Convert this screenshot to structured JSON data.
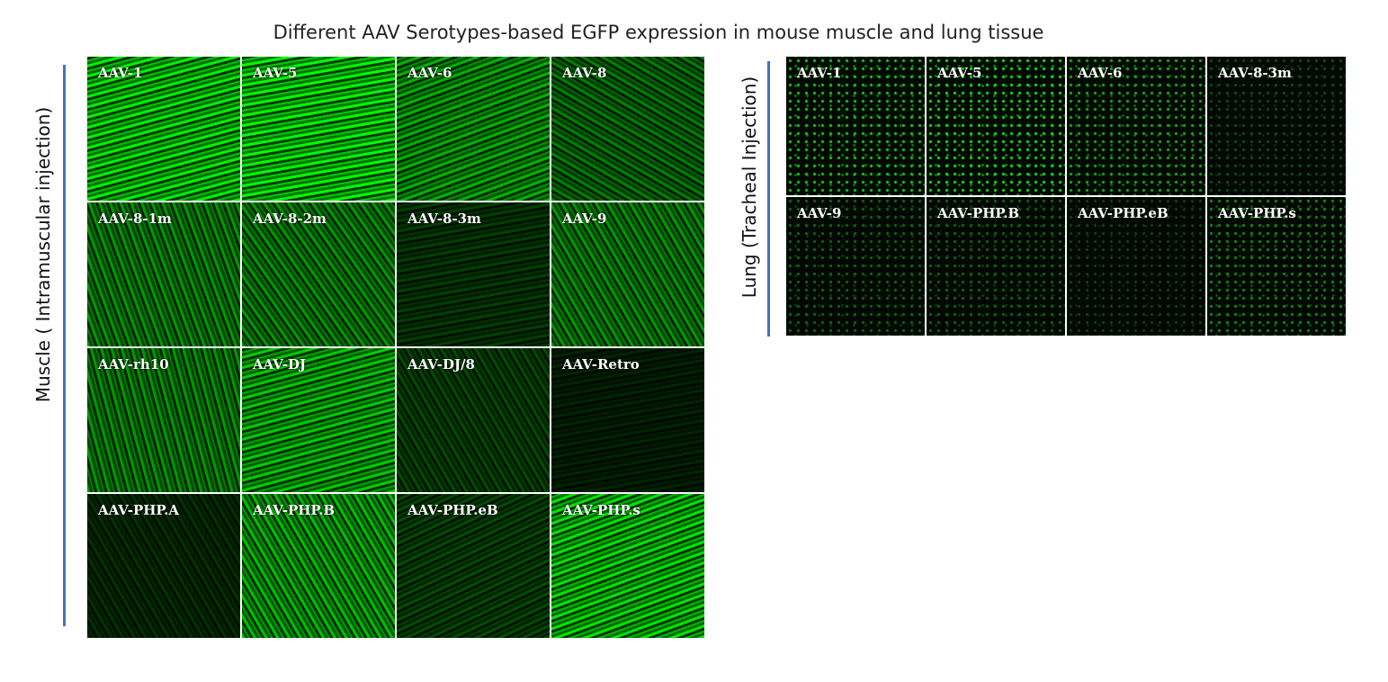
{
  "title": "Different AAV Serotypes-based EGFP expression in mouse muscle and lung tissue",
  "muscle": {
    "label": "Muscle ( Intramuscular injection)",
    "tiles": [
      "AAV-1",
      "AAV-5",
      "AAV-6",
      "AAV-8",
      "AAV-8-1m",
      "AAV-8-2m",
      "AAV-8-3m",
      "AAV-9",
      "AAV-rh10",
      "AAV-DJ",
      "AAV-DJ/8",
      "AAV-Retro",
      "AAV-PHP.A",
      "AAV-PHP.B",
      "AAV-PHP.eB",
      "AAV-PHP.s"
    ]
  },
  "lung": {
    "label": "Lung (Tracheal Injection)",
    "tiles": [
      "AAV-1",
      "AAV-5",
      "AAV-6",
      "AAV-8-3m",
      "AAV-9",
      "AAV-PHP.B",
      "AAV-PHP.eB",
      "AAV-PHP.s"
    ]
  }
}
